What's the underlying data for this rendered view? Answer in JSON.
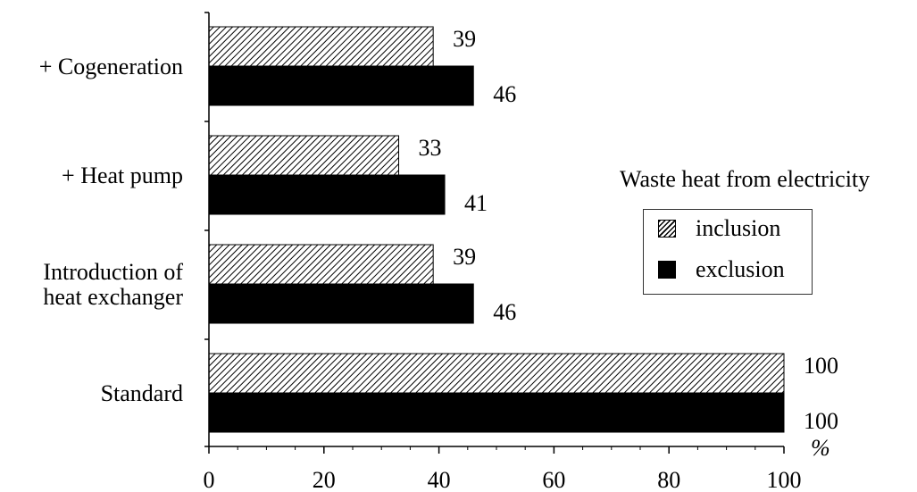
{
  "chart_data": {
    "type": "bar",
    "orientation": "horizontal",
    "categories": [
      "+ Cogeneration",
      "+ Heat pump",
      "Introduction of heat exchanger",
      "Standard"
    ],
    "category_lines": [
      [
        "+ Cogeneration"
      ],
      [
        "+ Heat pump"
      ],
      [
        "Introduction of",
        "heat exchanger"
      ],
      [
        "Standard"
      ]
    ],
    "series": [
      {
        "name": "inclusion",
        "values": [
          39,
          33,
          39,
          100
        ],
        "fill": "hatched"
      },
      {
        "name": "exclusion",
        "values": [
          46,
          41,
          46,
          100
        ],
        "fill": "solid"
      }
    ],
    "xlim": [
      0,
      100
    ],
    "xticks": [
      0,
      20,
      40,
      60,
      80,
      100
    ],
    "xlabel": "%",
    "title": "",
    "legend": {
      "title": "Waste heat from electricity",
      "position": "right"
    },
    "colors": {
      "bar": "#000000",
      "background": "#ffffff"
    }
  }
}
